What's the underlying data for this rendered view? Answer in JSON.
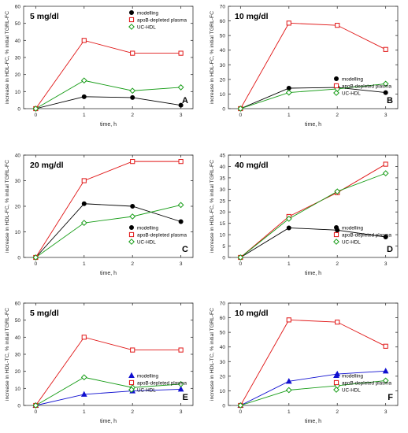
{
  "colors": {
    "modelling_black": "#000000",
    "modelling_blue": "#1010d0",
    "apob": "#e01515",
    "uchdl": "#169c16",
    "axis": "#333333"
  },
  "chart_data": [
    {
      "id": "A",
      "type": "line",
      "title": "5 mg/dl",
      "panel_letter": "A",
      "xlabel": "time, h",
      "ylabel": "increase in HDL-FC, % initial TGRL-FC",
      "x": [
        0,
        1,
        2,
        3
      ],
      "xticks": [
        "0",
        "1",
        "2",
        "3"
      ],
      "ylim": [
        0,
        60
      ],
      "yticks": [
        "0",
        "10",
        "20",
        "30",
        "40",
        "50",
        "60"
      ],
      "legend_position": "top-right",
      "series": [
        {
          "name": "modelling",
          "marker": "circle",
          "color": "#000000",
          "values": [
            0,
            7,
            6.5,
            2
          ]
        },
        {
          "name": "apoB-depleted plasma",
          "marker": "square",
          "color": "#e01515",
          "values": [
            0,
            40,
            32.5,
            32.5
          ]
        },
        {
          "name": "UC-HDL",
          "marker": "diamond",
          "color": "#169c16",
          "values": [
            0,
            16.5,
            10.5,
            12.5
          ]
        }
      ]
    },
    {
      "id": "B",
      "type": "line",
      "title": "10 mg/dl",
      "panel_letter": "B",
      "xlabel": "time, h",
      "ylabel": "increase in HDL-FC, % initial TGRL-FC",
      "x": [
        0,
        1,
        2,
        3
      ],
      "xticks": [
        "0",
        "1",
        "2",
        "3"
      ],
      "ylim": [
        0,
        70
      ],
      "yticks": [
        "0",
        "10",
        "20",
        "30",
        "40",
        "50",
        "60",
        "70"
      ],
      "legend_position": "bottom-right",
      "series": [
        {
          "name": "modelling",
          "marker": "circle",
          "color": "#000000",
          "values": [
            0,
            14,
            14.5,
            11
          ]
        },
        {
          "name": "apoB-depleted plasma",
          "marker": "square",
          "color": "#e01515",
          "values": [
            0,
            58.5,
            57,
            40.5
          ]
        },
        {
          "name": "UC-HDL",
          "marker": "diamond",
          "color": "#169c16",
          "values": [
            0,
            11,
            13.5,
            17
          ]
        }
      ]
    },
    {
      "id": "C",
      "type": "line",
      "title": "20 mg/dl",
      "panel_letter": "C",
      "xlabel": "time, h",
      "ylabel": "increase in HDL-FC, % initial TGRL-FC",
      "x": [
        0,
        1,
        2,
        3
      ],
      "xticks": [
        "0",
        "1",
        "2",
        "3"
      ],
      "ylim": [
        0,
        40
      ],
      "yticks": [
        "0",
        "10",
        "20",
        "30",
        "40"
      ],
      "legend_position": "bottom-right",
      "series": [
        {
          "name": "modelling",
          "marker": "circle",
          "color": "#000000",
          "values": [
            0,
            21,
            20,
            14
          ]
        },
        {
          "name": "apoB-depleted plasma",
          "marker": "square",
          "color": "#e01515",
          "values": [
            0,
            30,
            37.5,
            37.5
          ]
        },
        {
          "name": "UC-HDL",
          "marker": "diamond",
          "color": "#169c16",
          "values": [
            0,
            13.5,
            16,
            20.5
          ]
        }
      ]
    },
    {
      "id": "D",
      "type": "line",
      "title": "40 mg/dl",
      "panel_letter": "D",
      "xlabel": "time, h",
      "ylabel": "increase in HDL-FC, % initial TGRL-FC",
      "x": [
        0,
        1,
        2,
        3
      ],
      "xticks": [
        "0",
        "1",
        "2",
        "3"
      ],
      "ylim": [
        0,
        45
      ],
      "yticks": [
        "0",
        "5",
        "10",
        "15",
        "20",
        "25",
        "30",
        "35",
        "40",
        "45"
      ],
      "legend_position": "bottom-right",
      "series": [
        {
          "name": "modelling",
          "marker": "circle",
          "color": "#000000",
          "values": [
            0,
            13,
            12,
            9
          ]
        },
        {
          "name": "apoB-depleted plasma",
          "marker": "square",
          "color": "#e01515",
          "values": [
            0,
            18,
            28.5,
            41
          ]
        },
        {
          "name": "UC-HDL",
          "marker": "diamond",
          "color": "#169c16",
          "values": [
            0,
            17,
            29,
            37
          ]
        }
      ]
    },
    {
      "id": "E",
      "type": "line",
      "title": "5 mg/dl",
      "panel_letter": "E",
      "xlabel": "time, h",
      "ylabel": "increase in HDL-TC, % initial TGRL-FC",
      "x": [
        0,
        1,
        2,
        3
      ],
      "xticks": [
        "0",
        "1",
        "2",
        "3"
      ],
      "ylim": [
        0,
        60
      ],
      "yticks": [
        "0",
        "10",
        "20",
        "30",
        "40",
        "50",
        "60"
      ],
      "legend_position": "bottom-right",
      "series": [
        {
          "name": "modelling",
          "marker": "triangle",
          "color": "#1010d0",
          "values": [
            0,
            6.5,
            8.5,
            9.5
          ]
        },
        {
          "name": "apoB-depleted plasma",
          "marker": "square",
          "color": "#e01515",
          "values": [
            0,
            40,
            32.5,
            32.5
          ]
        },
        {
          "name": "UC-HDL",
          "marker": "diamond",
          "color": "#169c16",
          "values": [
            0,
            16.5,
            10.5,
            12.5
          ]
        }
      ]
    },
    {
      "id": "F",
      "type": "line",
      "title": "10 mg/dl",
      "panel_letter": "F",
      "xlabel": "time, h",
      "ylabel": "increase in HDL-TC, % initial TGRL-FC",
      "x": [
        0,
        1,
        2,
        3
      ],
      "xticks": [
        "0",
        "1",
        "2",
        "3"
      ],
      "ylim": [
        0,
        70
      ],
      "yticks": [
        "0",
        "10",
        "20",
        "30",
        "40",
        "50",
        "60",
        "70"
      ],
      "legend_position": "bottom-right",
      "series": [
        {
          "name": "modelling",
          "marker": "triangle",
          "color": "#1010d0",
          "values": [
            0,
            16.5,
            21.5,
            23.5
          ]
        },
        {
          "name": "apoB-depleted plasma",
          "marker": "square",
          "color": "#e01515",
          "values": [
            0,
            58.5,
            57,
            40.5
          ]
        },
        {
          "name": "UC-HDL",
          "marker": "diamond",
          "color": "#169c16",
          "values": [
            0,
            10.5,
            13.5,
            17
          ]
        }
      ]
    }
  ]
}
